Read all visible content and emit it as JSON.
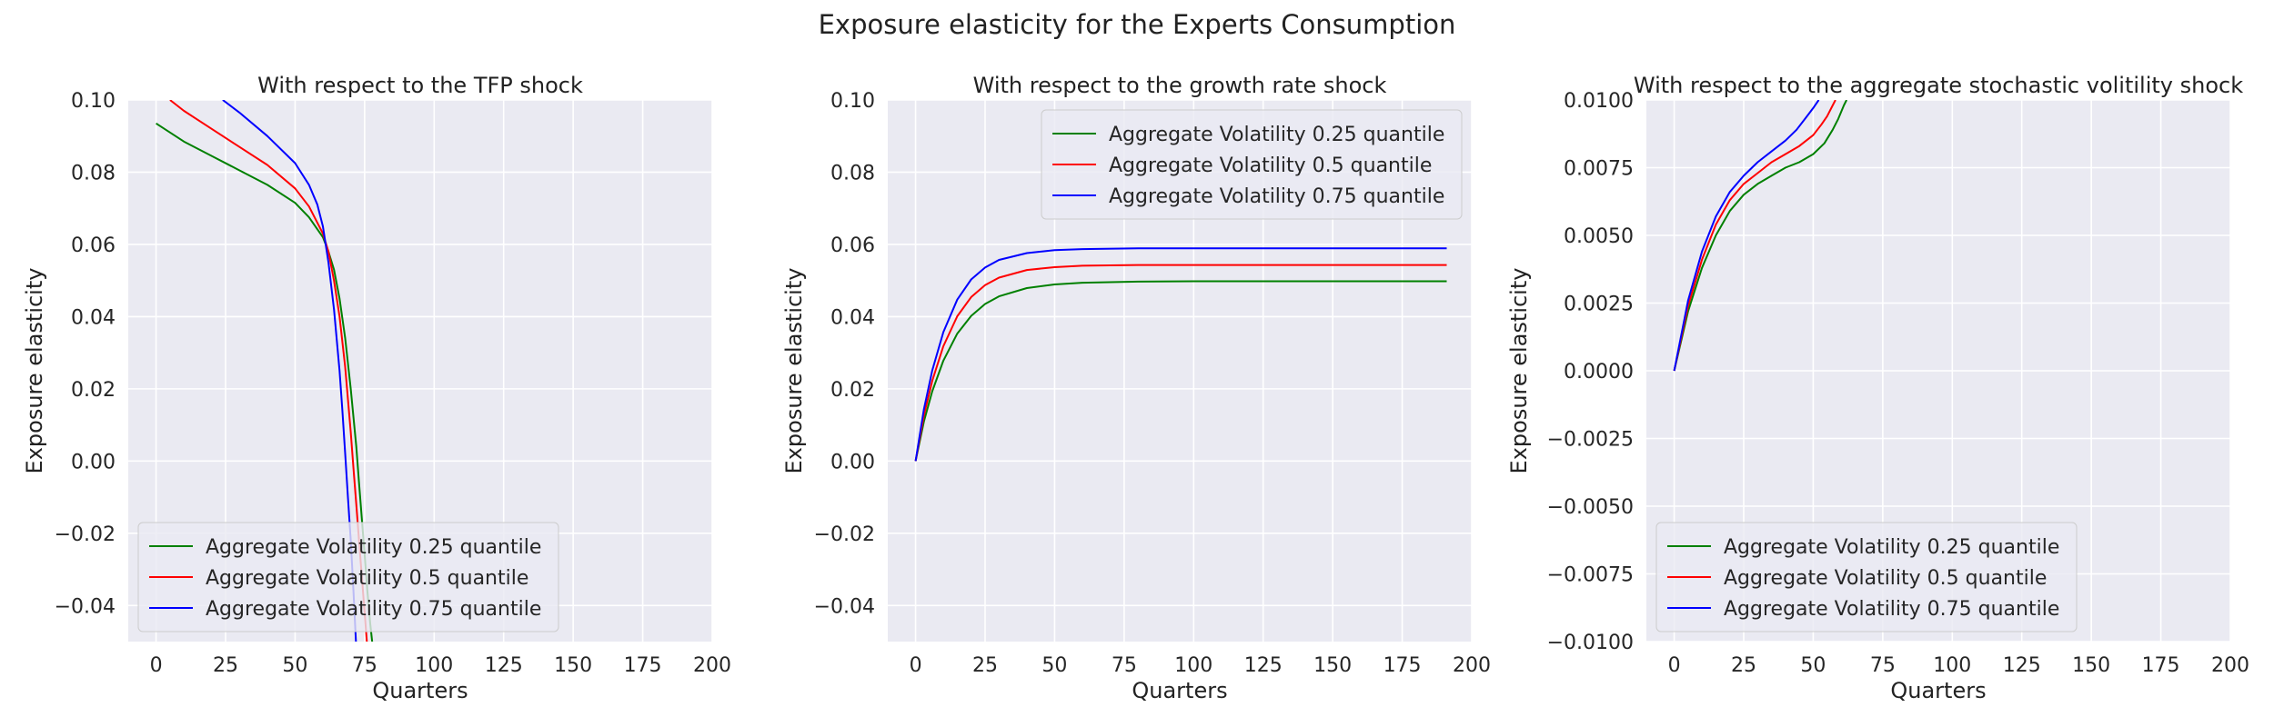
{
  "figure": {
    "title": "Exposure elasticity for the Experts Consumption"
  },
  "chart_data": [
    {
      "type": "line",
      "title": "With respect to the TFP shock",
      "xlabel": "Quarters",
      "ylabel": "Exposure elasticity",
      "xlim": [
        -10,
        200
      ],
      "ylim": [
        -0.05,
        0.1
      ],
      "xticks": [
        0,
        25,
        50,
        75,
        100,
        125,
        150,
        175,
        200
      ],
      "yticks": [
        -0.04,
        -0.02,
        0.0,
        0.02,
        0.04,
        0.06,
        0.08,
        0.1
      ],
      "ytick_labels": [
        "−0.04",
        "−0.02",
        "0.00",
        "0.02",
        "0.04",
        "0.06",
        "0.08",
        "0.10"
      ],
      "grid": true,
      "legend_position": "lower-left",
      "series": [
        {
          "name": "Aggregate Volatility 0.25 quantile",
          "color": "#008000",
          "x": [
            0,
            10,
            20,
            30,
            40,
            50,
            55,
            60,
            62,
            64,
            66,
            68,
            70,
            72,
            73,
            74,
            75,
            76,
            77,
            78
          ],
          "y": [
            0.0935,
            0.0885,
            0.0845,
            0.0805,
            0.0765,
            0.0715,
            0.0675,
            0.062,
            0.058,
            0.053,
            0.045,
            0.034,
            0.02,
            0.004,
            -0.006,
            -0.016,
            -0.026,
            -0.036,
            -0.045,
            -0.052
          ]
        },
        {
          "name": "Aggregate Volatility 0.5 quantile",
          "color": "#ff0000",
          "x": [
            5,
            10,
            20,
            30,
            40,
            50,
            55,
            60,
            62,
            64,
            66,
            68,
            70,
            71,
            72,
            73,
            74,
            75,
            76
          ],
          "y": [
            0.1,
            0.097,
            0.092,
            0.087,
            0.082,
            0.0755,
            0.0705,
            0.063,
            0.058,
            0.05,
            0.04,
            0.026,
            0.008,
            -0.002,
            -0.012,
            -0.022,
            -0.032,
            -0.042,
            -0.052
          ]
        },
        {
          "name": "Aggregate Volatility 0.75 quantile",
          "color": "#0000ff",
          "x": [
            24,
            30,
            40,
            50,
            55,
            58,
            60,
            62,
            64,
            66,
            67,
            68,
            69,
            70,
            71,
            72
          ],
          "y": [
            0.1,
            0.0965,
            0.09,
            0.0825,
            0.0765,
            0.071,
            0.065,
            0.055,
            0.042,
            0.025,
            0.014,
            0.002,
            -0.01,
            -0.022,
            -0.036,
            -0.052
          ]
        }
      ]
    },
    {
      "type": "line",
      "title": "With respect to the growth rate shock",
      "xlabel": "Quarters",
      "ylabel": "Exposure elasticity",
      "xlim": [
        -10,
        200
      ],
      "ylim": [
        -0.05,
        0.1
      ],
      "xticks": [
        0,
        25,
        50,
        75,
        100,
        125,
        150,
        175,
        200
      ],
      "yticks": [
        -0.04,
        -0.02,
        0.0,
        0.02,
        0.04,
        0.06,
        0.08,
        0.1
      ],
      "ytick_labels": [
        "−0.04",
        "−0.02",
        "0.00",
        "0.02",
        "0.04",
        "0.06",
        "0.08",
        "0.10"
      ],
      "grid": true,
      "legend_position": "upper-right",
      "series": [
        {
          "name": "Aggregate Volatility 0.25 quantile",
          "color": "#008000",
          "x": [
            0,
            3,
            6,
            10,
            15,
            20,
            25,
            30,
            40,
            50,
            60,
            80,
            100,
            130,
            160,
            191
          ],
          "y": [
            0.0,
            0.0109,
            0.0193,
            0.0278,
            0.0353,
            0.0402,
            0.0435,
            0.0456,
            0.0479,
            0.0489,
            0.0494,
            0.0497,
            0.0498,
            0.0498,
            0.0498,
            0.0498
          ]
        },
        {
          "name": "Aggregate Volatility 0.5 quantile",
          "color": "#ff0000",
          "x": [
            0,
            3,
            6,
            10,
            15,
            20,
            25,
            30,
            40,
            50,
            60,
            80,
            100,
            130,
            160,
            191
          ],
          "y": [
            0.0,
            0.0126,
            0.0222,
            0.0318,
            0.0401,
            0.0454,
            0.0487,
            0.0508,
            0.0529,
            0.0537,
            0.0541,
            0.0543,
            0.0543,
            0.0543,
            0.0543,
            0.0543
          ]
        },
        {
          "name": "Aggregate Volatility 0.75 quantile",
          "color": "#0000ff",
          "x": [
            0,
            3,
            6,
            10,
            15,
            20,
            25,
            30,
            40,
            50,
            60,
            80,
            100,
            130,
            160,
            191
          ],
          "y": [
            0.0,
            0.0143,
            0.0251,
            0.0357,
            0.0447,
            0.0503,
            0.0536,
            0.0557,
            0.0576,
            0.0584,
            0.0587,
            0.0589,
            0.0589,
            0.0589,
            0.0589,
            0.0589
          ]
        }
      ]
    },
    {
      "type": "line",
      "title": "With respect to the aggregate stochastic volitility shock",
      "xlabel": "Quarters",
      "ylabel": "Exposure elasticity",
      "xlim": [
        -10,
        200
      ],
      "ylim": [
        -0.01,
        0.01
      ],
      "xticks": [
        0,
        25,
        50,
        75,
        100,
        125,
        150,
        175,
        200
      ],
      "yticks": [
        -0.01,
        -0.0075,
        -0.005,
        -0.0025,
        0.0,
        0.0025,
        0.005,
        0.0075,
        0.01
      ],
      "ytick_labels": [
        "−0.0100",
        "−0.0075",
        "−0.0050",
        "−0.0025",
        "0.0000",
        "0.0025",
        "0.0050",
        "0.0075",
        "0.0100"
      ],
      "grid": true,
      "legend_position": "lower-left",
      "series": [
        {
          "name": "Aggregate Volatility 0.25 quantile",
          "color": "#008000",
          "x": [
            0,
            5,
            10,
            15,
            20,
            25,
            30,
            35,
            40,
            45,
            50,
            54,
            57,
            59,
            61,
            62
          ],
          "y": [
            0.0,
            0.0022,
            0.0038,
            0.005,
            0.0059,
            0.0065,
            0.0069,
            0.0072,
            0.0075,
            0.0077,
            0.008,
            0.0084,
            0.0089,
            0.0093,
            0.0098,
            0.01
          ]
        },
        {
          "name": "Aggregate Volatility 0.5 quantile",
          "color": "#ff0000",
          "x": [
            0,
            5,
            10,
            15,
            20,
            25,
            30,
            35,
            40,
            45,
            50,
            53,
            55,
            57,
            58
          ],
          "y": [
            0.0,
            0.0024,
            0.0041,
            0.0054,
            0.0063,
            0.0069,
            0.0073,
            0.0077,
            0.008,
            0.0083,
            0.0087,
            0.0091,
            0.0094,
            0.0098,
            0.01
          ]
        },
        {
          "name": "Aggregate Volatility 0.75 quantile",
          "color": "#0000ff",
          "x": [
            0,
            5,
            10,
            15,
            20,
            25,
            30,
            35,
            40,
            44,
            47,
            50,
            52
          ],
          "y": [
            0.0,
            0.0026,
            0.0044,
            0.0057,
            0.0066,
            0.0072,
            0.0077,
            0.0081,
            0.0085,
            0.0089,
            0.0093,
            0.0097,
            0.01
          ]
        }
      ]
    }
  ]
}
